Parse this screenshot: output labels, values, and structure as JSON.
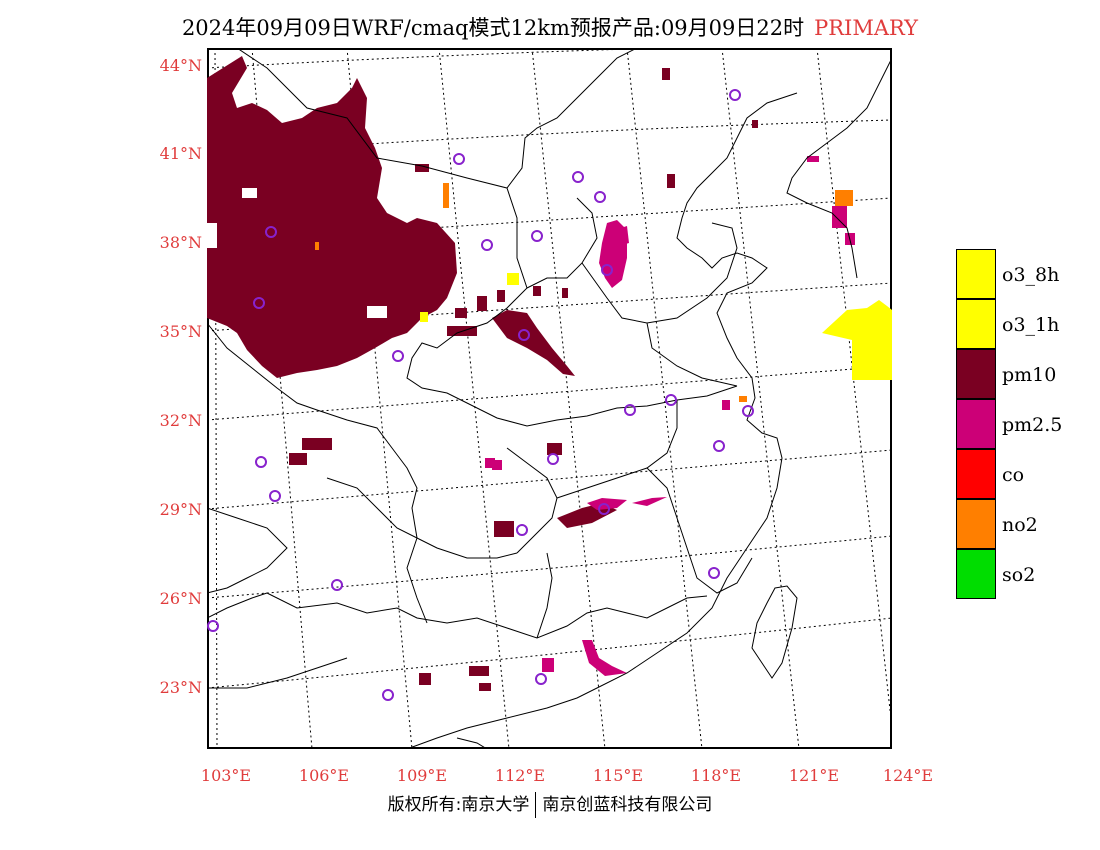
{
  "header": {
    "title": "2024年09月09日WRF/cmaq模式12km预报产品:09月09日22时",
    "tag": "PRIMARY"
  },
  "map": {
    "lat_labels": [
      "44°N",
      "41°N",
      "38°N",
      "35°N",
      "32°N",
      "29°N",
      "26°N",
      "23°N"
    ],
    "lon_labels": [
      "103°E",
      "106°E",
      "109°E",
      "112°E",
      "115°E",
      "118°E",
      "121°E",
      "124°E"
    ],
    "colors": {
      "pm10": "#7a0022",
      "pm25": "#cc0077",
      "o3": "#ffff00",
      "no2": "#ff7f00",
      "co": "#ff0000",
      "so2": "#00dd00",
      "station": "#8822cc"
    }
  },
  "legend": {
    "items": [
      {
        "label": "o3_8h",
        "color": "#ffff00"
      },
      {
        "label": "o3_1h",
        "color": "#ffff00"
      },
      {
        "label": "pm10",
        "color": "#7a0022"
      },
      {
        "label": "pm2.5",
        "color": "#cc0077"
      },
      {
        "label": "co",
        "color": "#ff0000"
      },
      {
        "label": "no2",
        "color": "#ff7f00"
      },
      {
        "label": "so2",
        "color": "#00dd00"
      }
    ]
  },
  "footer": {
    "left": "版权所有:南京大学",
    "right": "南京创蓝科技有限公司"
  }
}
